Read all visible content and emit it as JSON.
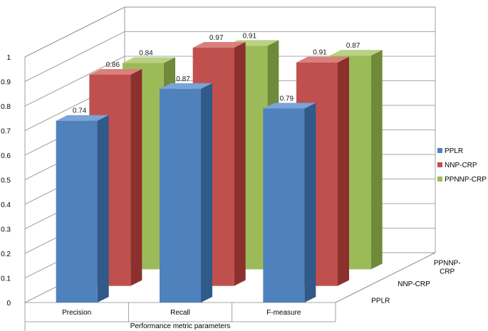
{
  "chart_data": {
    "type": "bar",
    "categories": [
      "Precision",
      "Recall",
      "F-measure"
    ],
    "series": [
      {
        "name": "PPLR",
        "values": [
          0.74,
          0.87,
          0.79
        ],
        "labels": [
          "0.74",
          "0.87",
          "0.79"
        ]
      },
      {
        "name": "NNP-CRP",
        "values": [
          0.86,
          0.97,
          0.91
        ],
        "labels": [
          "0.86",
          "0.97",
          "0.91"
        ]
      },
      {
        "name": "PPNNP-CRP",
        "values": [
          0.84,
          0.91,
          0.87
        ],
        "labels": [
          "0.84",
          "0.91",
          "0.87"
        ]
      }
    ],
    "ylim": [
      0,
      1
    ],
    "y_ticks": [
      "0",
      "0.1",
      "0.2",
      "0.3",
      "0.4",
      "0.5",
      "0.6",
      "0.7",
      "0.8",
      "0.9",
      "1"
    ],
    "depth_labels": [
      "PPLR",
      "NNP-CRP",
      "PPNNP-\nCRP"
    ],
    "xlabel": "Performance metric parameters",
    "ylabel": "",
    "legend": "right",
    "grid": true,
    "colors": {
      "PPLR": {
        "front": "#4f81bd",
        "side": "#2f5a8a",
        "top": "#7aa3d6"
      },
      "NNP-CRP": {
        "front": "#c0504d",
        "side": "#8c302e",
        "top": "#d9807d"
      },
      "PPNNP-CRP": {
        "front": "#9bbb59",
        "side": "#6f8a38",
        "top": "#b9d183"
      }
    }
  }
}
